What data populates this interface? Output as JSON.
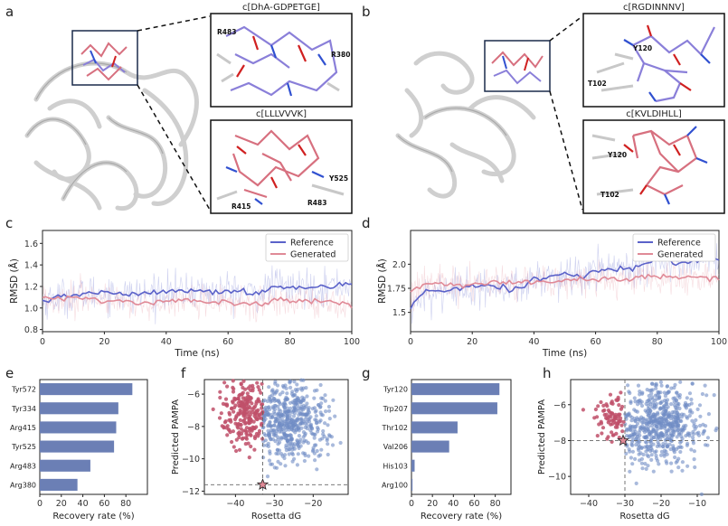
{
  "panel_labels": [
    "a",
    "b",
    "c",
    "d",
    "e",
    "f",
    "g",
    "h"
  ],
  "insets": {
    "a_top": {
      "title": "c[DhA-GDPETGE]",
      "residues": [
        "R483",
        "R380"
      ]
    },
    "a_bottom": {
      "title": "c[LLLVVVK]",
      "residues": [
        "Y525",
        "R415",
        "R483"
      ]
    },
    "b_top": {
      "title": "c[RGDINNNV]",
      "residues": [
        "Y120",
        "T102"
      ]
    },
    "b_bottom": {
      "title": "c[KVLDIHLL]",
      "residues": [
        "Y120",
        "T102"
      ]
    }
  },
  "colors": {
    "reference": "#5b62c9",
    "generated": "#e08a97",
    "bar": "#6b7fb5",
    "red_pt": "#c0506a",
    "blue_pt": "#6f8cc4"
  },
  "chart_data": [
    {
      "id": "c",
      "type": "line",
      "xlabel": "Time (ns)",
      "ylabel": "RMSD (Å)",
      "xlim": [
        0,
        100
      ],
      "ylim": [
        0.78,
        1.72
      ],
      "xticks": [
        0,
        20,
        40,
        60,
        80,
        100
      ],
      "yticks": [
        0.8,
        1.0,
        1.2,
        1.4,
        1.6
      ],
      "ytick_labels": [
        "0.8",
        "1.0",
        "1.2",
        "1.4",
        "1.6"
      ],
      "legend": [
        "Reference",
        "Generated"
      ],
      "series": [
        {
          "name": "Reference",
          "x": [
            0,
            5,
            10,
            15,
            20,
            25,
            30,
            35,
            40,
            45,
            50,
            55,
            60,
            65,
            70,
            75,
            80,
            85,
            90,
            95,
            100
          ],
          "values": [
            1.06,
            1.1,
            1.12,
            1.13,
            1.15,
            1.13,
            1.12,
            1.14,
            1.16,
            1.15,
            1.17,
            1.14,
            1.16,
            1.15,
            1.13,
            1.22,
            1.18,
            1.2,
            1.19,
            1.21,
            1.23
          ]
        },
        {
          "name": "Generated",
          "x": [
            0,
            5,
            10,
            15,
            20,
            25,
            30,
            35,
            40,
            45,
            50,
            55,
            60,
            65,
            70,
            75,
            80,
            85,
            90,
            95,
            100
          ],
          "values": [
            1.1,
            1.08,
            1.1,
            1.08,
            1.06,
            1.07,
            1.04,
            1.05,
            1.06,
            1.07,
            1.08,
            1.05,
            1.06,
            1.04,
            1.02,
            1.07,
            1.08,
            1.06,
            1.07,
            1.05,
            1.02
          ]
        }
      ]
    },
    {
      "id": "d",
      "type": "line",
      "xlabel": "Time (ns)",
      "ylabel": "RMSD (Å)",
      "xlim": [
        0,
        100
      ],
      "ylim": [
        1.3,
        2.35
      ],
      "xticks": [
        0,
        20,
        40,
        60,
        80,
        100
      ],
      "yticks": [
        1.5,
        1.75,
        2.0
      ],
      "ytick_labels": [
        "1.5",
        "1.75",
        "2.0"
      ],
      "legend": [
        "Reference",
        "Generated"
      ],
      "series": [
        {
          "name": "Reference",
          "x": [
            0,
            5,
            10,
            15,
            20,
            25,
            30,
            35,
            40,
            45,
            50,
            55,
            60,
            65,
            70,
            75,
            80,
            85,
            90,
            95,
            100
          ],
          "values": [
            1.55,
            1.75,
            1.72,
            1.74,
            1.76,
            1.78,
            1.76,
            1.74,
            1.85,
            1.87,
            1.9,
            1.88,
            1.92,
            1.96,
            1.95,
            1.98,
            2.06,
            2.0,
            2.03,
            2.05,
            2.05
          ]
        },
        {
          "name": "Generated",
          "x": [
            0,
            5,
            10,
            15,
            20,
            25,
            30,
            35,
            40,
            45,
            50,
            55,
            60,
            65,
            70,
            75,
            80,
            85,
            90,
            95,
            100
          ],
          "values": [
            1.72,
            1.78,
            1.8,
            1.78,
            1.8,
            1.79,
            1.81,
            1.8,
            1.83,
            1.84,
            1.82,
            1.85,
            1.84,
            1.86,
            1.83,
            1.88,
            1.86,
            1.87,
            1.86,
            1.85,
            1.87
          ]
        }
      ]
    },
    {
      "id": "e",
      "type": "bar",
      "xlabel": "Recovery rate (%)",
      "xlim": [
        0,
        100
      ],
      "xticks": [
        0,
        20,
        40,
        60,
        80
      ],
      "categories": [
        "Tyr572",
        "Tyr334",
        "Arg415",
        "Tyr525",
        "Arg483",
        "Arg380"
      ],
      "values": [
        86,
        73,
        71,
        69,
        47,
        35
      ]
    },
    {
      "id": "f",
      "type": "scatter",
      "xlabel": "Rosetta dG",
      "ylabel": "Predicted PAMPA",
      "xlim": [
        -48,
        -11
      ],
      "ylim": [
        -12.2,
        -5.1
      ],
      "xticks": [
        -40,
        -30,
        -20
      ],
      "yticks": [
        -6,
        -8,
        -10,
        -12
      ],
      "threshold_x": -33,
      "threshold_y": -11.6,
      "star": {
        "x": -33,
        "y": -11.6
      }
    },
    {
      "id": "g",
      "type": "bar",
      "xlabel": "Recovery rate (%)",
      "xlim": [
        0,
        95
      ],
      "xticks": [
        0,
        20,
        40,
        60,
        80
      ],
      "categories": [
        "Tyr120",
        "Trp207",
        "Thr102",
        "Val206",
        "His103",
        "Arg100"
      ],
      "values": [
        84,
        82,
        44,
        36,
        3,
        1
      ]
    },
    {
      "id": "h",
      "type": "scatter",
      "xlabel": "Rosetta dG",
      "ylabel": "Predicted PAMPA",
      "xlim": [
        -45,
        -4
      ],
      "ylim": [
        -11.0,
        -4.6
      ],
      "xticks": [
        -40,
        -30,
        -20,
        -10
      ],
      "yticks": [
        -6,
        -8,
        -10
      ],
      "threshold_x": -30,
      "threshold_y": -8,
      "star": {
        "x": -30.5,
        "y": -8
      }
    }
  ]
}
